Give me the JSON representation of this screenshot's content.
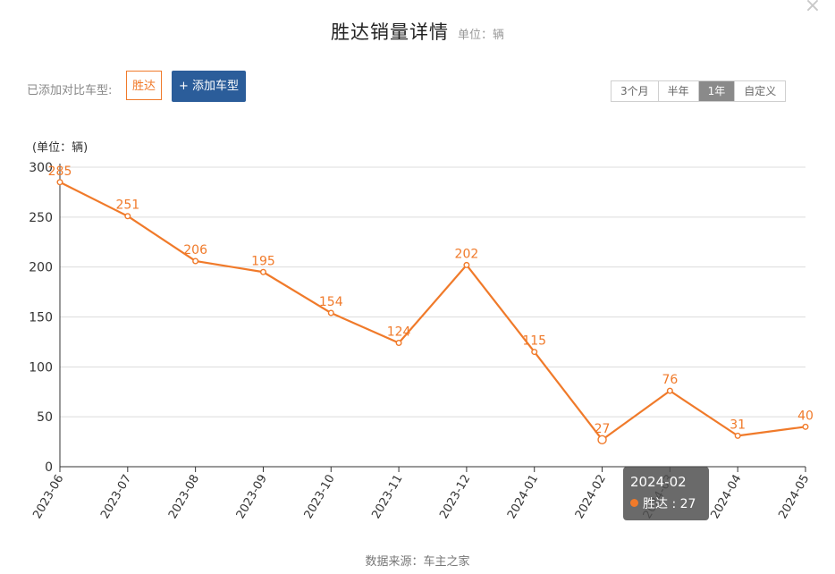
{
  "header": {
    "title": "胜达销量详情",
    "unit": "单位：辆"
  },
  "compare": {
    "label": "已添加对比车型:",
    "model": "胜达",
    "add_button": "+ 添加车型"
  },
  "range": {
    "options": [
      "3个月",
      "半年",
      "1年",
      "自定义"
    ],
    "active": "1年"
  },
  "tooltip": {
    "date": "2024-02",
    "series": "胜达",
    "value": "27"
  },
  "source": "数据来源：车主之家",
  "colors": {
    "accent": "#f07a2a",
    "button": "#2b5d9a"
  },
  "chart_data": {
    "type": "line",
    "title": "",
    "ylabel": "(单位：辆)",
    "xlabel": "",
    "ylim": [
      0,
      300
    ],
    "yticks": [
      0,
      50,
      100,
      150,
      200,
      250,
      300
    ],
    "grid": true,
    "x": [
      "2023-06",
      "2023-07",
      "2023-08",
      "2023-09",
      "2023-10",
      "2023-11",
      "2023-12",
      "2024-01",
      "2024-02",
      "2024-03",
      "2024-04",
      "2024-05"
    ],
    "series": [
      {
        "name": "胜达",
        "values": [
          285,
          251,
          206,
          195,
          154,
          124,
          202,
          115,
          27,
          76,
          31,
          40
        ]
      }
    ]
  }
}
